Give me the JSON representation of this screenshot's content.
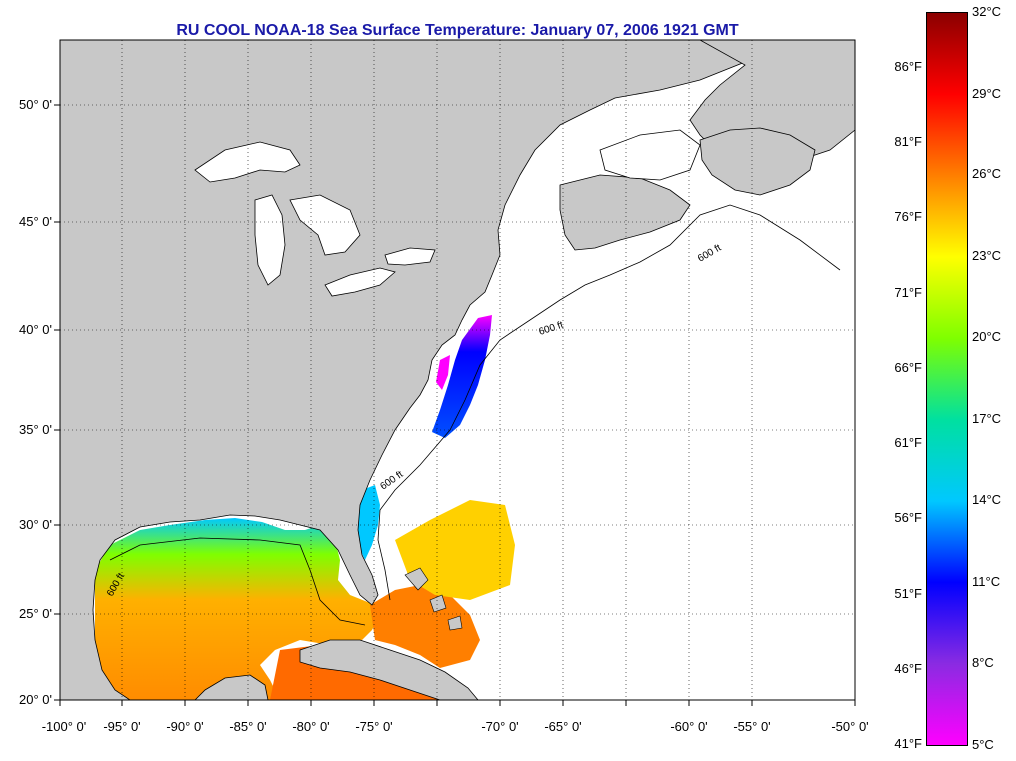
{
  "title": "RU COOL  NOAA-18  Sea Surface Temperature:  January 07, 2006 1921 GMT",
  "lat_labels": [
    "50° 0'",
    "45° 0'",
    "40° 0'",
    "35° 0'",
    "30° 0'",
    "25° 0'",
    "20° 0'"
  ],
  "lon_labels": [
    "-100° 0'",
    "-95° 0'",
    "-90° 0'",
    "-85° 0'",
    "-80° 0'",
    "-75° 0'",
    "-70° 0'",
    "-65° 0'",
    "-60° 0'",
    "-55° 0'",
    "-50° 0'"
  ],
  "bathymetry_label": "600 ft",
  "colorbar": {
    "fahrenheit": [
      "86°F",
      "81°F",
      "76°F",
      "71°F",
      "66°F",
      "61°F",
      "56°F",
      "51°F",
      "46°F",
      "41°F"
    ],
    "celsius": [
      "32°C",
      "29°C",
      "26°C",
      "23°C",
      "20°C",
      "17°C",
      "14°C",
      "11°C",
      "8°C",
      "5°C"
    ],
    "stops": [
      "#8b0000",
      "#ff0000",
      "#ff7f00",
      "#ffff00",
      "#7fff00",
      "#00e0a0",
      "#00c8ff",
      "#0000ff",
      "#8a2be2",
      "#ff00ff"
    ]
  },
  "colors": {
    "land": "#c8c8c8",
    "ocean_no_data": "#ffffff",
    "title": "#1a1aa8"
  }
}
